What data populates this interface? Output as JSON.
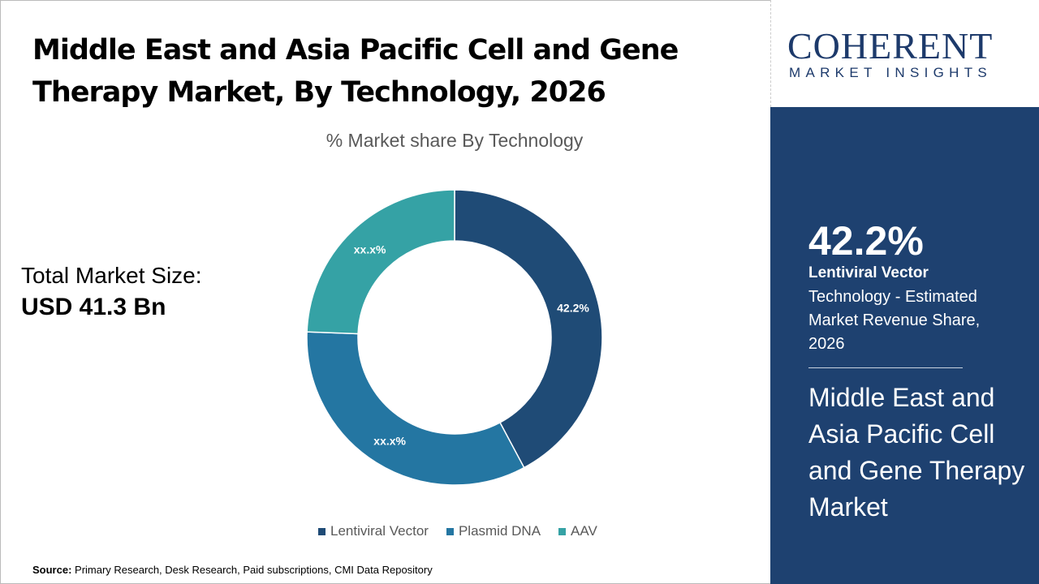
{
  "title": "Middle East and Asia Pacific Cell and Gene Therapy Market, By Technology, 2026",
  "total_market": {
    "label": "Total Market Size:",
    "value": "USD 41.3 Bn"
  },
  "logo": {
    "main": "COHERENT",
    "sub": "MARKET INSIGHTS"
  },
  "highlight": {
    "percent": "42.2%",
    "segment": "Lentiviral Vector",
    "description": "Technology - Estimated Market Revenue Share, 2026",
    "market_name": "Middle East and Asia Pacific Cell and Gene Therapy Market"
  },
  "source": {
    "label": "Source:",
    "text": " Primary Research, Desk Research, Paid subscriptions, CMI Data Repository"
  },
  "chart_data": {
    "type": "pie",
    "donut": true,
    "title": "% Market share By Technology",
    "categories": [
      "Lentiviral Vector",
      "Plasmid DNA",
      "AAV"
    ],
    "values": [
      42.2,
      33.4,
      24.4
    ],
    "data_labels": [
      "42.2%",
      "xx.x%",
      "xx.x%"
    ],
    "colors": [
      "#1f4b76",
      "#2476a2",
      "#35a2a5"
    ],
    "legend": "bottom"
  }
}
